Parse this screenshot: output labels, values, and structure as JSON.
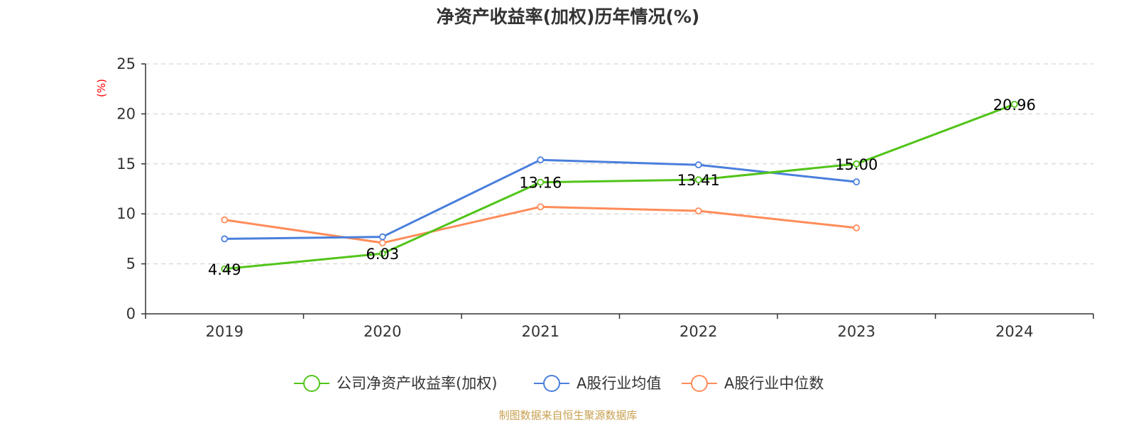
{
  "chart_data": {
    "type": "line",
    "title": "净资产收益率(加权)历年情况(%)",
    "ylabel": "(%)",
    "categories": [
      "2019",
      "2020",
      "2021",
      "2022",
      "2023",
      "2024"
    ],
    "ylim": [
      0,
      25
    ],
    "yticks": [
      0,
      5,
      10,
      15,
      20,
      25
    ],
    "grid": true,
    "legend_position": "bottom",
    "series": [
      {
        "name": "公司净资产收益率(加权)",
        "color": "#52c41a",
        "values": [
          4.49,
          6.03,
          13.16,
          13.41,
          15.0,
          20.96
        ],
        "labels": [
          "4.49",
          "6.03",
          "13.16",
          "13.41",
          "15.00",
          "20.96"
        ]
      },
      {
        "name": "A股行业均值",
        "color": "#4a7fdc",
        "values": [
          7.5,
          7.7,
          15.4,
          14.9,
          13.2,
          null
        ]
      },
      {
        "name": "A股行业中位数",
        "color": "#ff8c5a",
        "values": [
          9.4,
          7.1,
          10.7,
          10.3,
          8.6,
          null
        ]
      }
    ]
  },
  "source": "制图数据来自恒生聚源数据库"
}
